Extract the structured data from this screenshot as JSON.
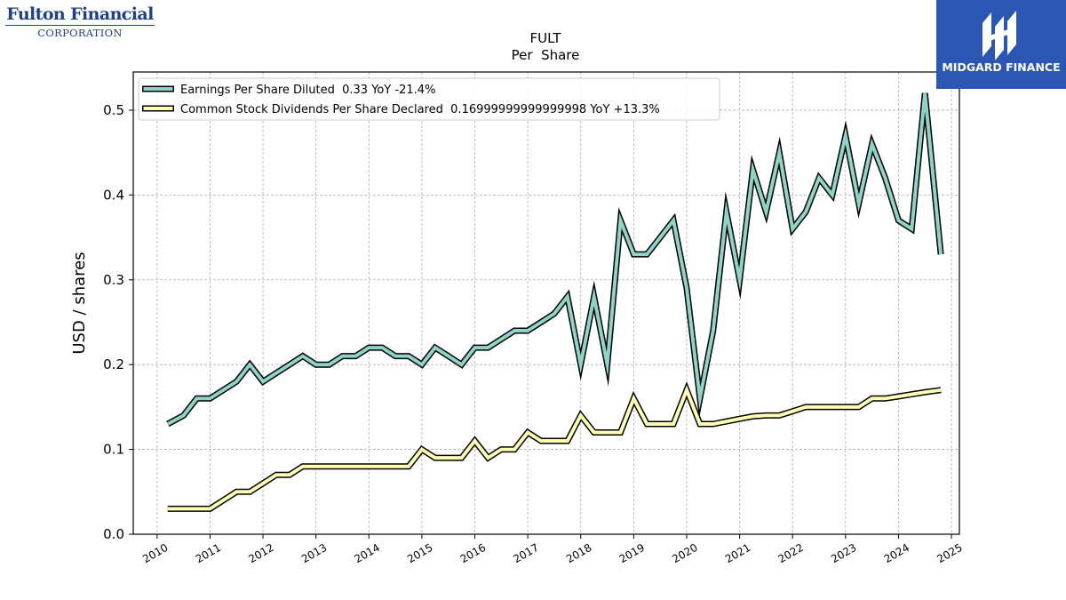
{
  "branding": {
    "left_logo": {
      "name": "Fulton Financial",
      "sub": "CORPORATION",
      "color": "#1f3f8a"
    },
    "right_logo": {
      "name": "MIDGARD FINANCE",
      "icon": "midgard-logo-icon",
      "background": "#2a57b3"
    }
  },
  "chart_data": {
    "type": "line",
    "title": "FULT",
    "subtitle": "Per  Share",
    "xlabel": "",
    "ylabel": "USD / shares",
    "xlim": [
      2009.55,
      2025.15
    ],
    "ylim": [
      0.0,
      0.545
    ],
    "x_ticks": [
      2010,
      2011,
      2012,
      2013,
      2014,
      2015,
      2016,
      2017,
      2018,
      2019,
      2020,
      2021,
      2022,
      2023,
      2024,
      2025
    ],
    "x_tick_labels": [
      "2010",
      "2011",
      "2012",
      "2013",
      "2014",
      "2015",
      "2016",
      "2017",
      "2018",
      "2019",
      "2020",
      "2021",
      "2022",
      "2023",
      "2024",
      "2025"
    ],
    "y_ticks": [
      0.0,
      0.1,
      0.2,
      0.3,
      0.4,
      0.5
    ],
    "y_tick_labels": [
      "0.0",
      "0.1",
      "0.2",
      "0.3",
      "0.4",
      "0.5"
    ],
    "grid": true,
    "legend_position": "top-left",
    "series": [
      {
        "name": "Earnings Per Share Diluted",
        "legend_label": "Earnings Per Share Diluted  0.33 YoY -21.4%",
        "color": "#8dd3c7",
        "x": [
          2010.2,
          2010.5,
          2010.75,
          2011.0,
          2011.25,
          2011.5,
          2011.75,
          2012.0,
          2012.25,
          2012.5,
          2012.75,
          2013.0,
          2013.25,
          2013.5,
          2013.75,
          2014.0,
          2014.25,
          2014.5,
          2014.75,
          2015.0,
          2015.25,
          2015.5,
          2015.75,
          2016.0,
          2016.25,
          2016.5,
          2016.75,
          2017.0,
          2017.25,
          2017.5,
          2017.75,
          2018.0,
          2018.25,
          2018.5,
          2018.75,
          2019.0,
          2019.25,
          2019.5,
          2019.75,
          2020.0,
          2020.25,
          2020.5,
          2020.75,
          2021.0,
          2021.25,
          2021.5,
          2021.75,
          2022.0,
          2022.25,
          2022.5,
          2022.75,
          2023.0,
          2023.25,
          2023.5,
          2023.75,
          2024.0,
          2024.25,
          2024.5,
          2024.8
        ],
        "values": [
          0.13,
          0.14,
          0.16,
          0.16,
          0.17,
          0.18,
          0.2,
          0.18,
          0.19,
          0.2,
          0.21,
          0.2,
          0.2,
          0.21,
          0.21,
          0.22,
          0.22,
          0.21,
          0.21,
          0.2,
          0.22,
          0.21,
          0.2,
          0.22,
          0.22,
          0.23,
          0.24,
          0.24,
          0.25,
          0.26,
          0.28,
          0.2,
          0.28,
          0.2,
          0.37,
          0.33,
          0.33,
          0.35,
          0.37,
          0.29,
          0.16,
          0.24,
          0.38,
          0.3,
          0.43,
          0.38,
          0.45,
          0.36,
          0.38,
          0.42,
          0.4,
          0.47,
          0.39,
          0.46,
          0.42,
          0.37,
          0.36,
          0.52,
          0.33
        ]
      },
      {
        "name": "Common Stock Dividends Per Share Declared",
        "legend_label": "Common Stock Dividends Per Share Declared  0.16999999999999998 YoY +13.3%",
        "color": "#ffffb3",
        "x": [
          2010.2,
          2010.5,
          2010.75,
          2011.0,
          2011.25,
          2011.5,
          2011.75,
          2012.0,
          2012.25,
          2012.5,
          2012.75,
          2013.0,
          2013.25,
          2013.5,
          2013.75,
          2014.0,
          2014.25,
          2014.5,
          2014.75,
          2015.0,
          2015.25,
          2015.5,
          2015.75,
          2016.0,
          2016.25,
          2016.5,
          2016.75,
          2017.0,
          2017.25,
          2017.5,
          2017.75,
          2018.0,
          2018.25,
          2018.5,
          2018.75,
          2019.0,
          2019.25,
          2019.5,
          2019.75,
          2020.0,
          2020.25,
          2020.5,
          2020.75,
          2021.0,
          2021.25,
          2021.5,
          2021.75,
          2022.0,
          2022.25,
          2022.5,
          2022.75,
          2023.0,
          2023.25,
          2023.5,
          2023.75,
          2024.0,
          2024.25,
          2024.5,
          2024.8
        ],
        "values": [
          0.03,
          0.03,
          0.03,
          0.03,
          0.04,
          0.05,
          0.05,
          0.06,
          0.07,
          0.07,
          0.08,
          0.08,
          0.08,
          0.08,
          0.08,
          0.08,
          0.08,
          0.08,
          0.08,
          0.1,
          0.09,
          0.09,
          0.09,
          0.11,
          0.09,
          0.1,
          0.1,
          0.12,
          0.11,
          0.11,
          0.11,
          0.14,
          0.12,
          0.12,
          0.12,
          0.16,
          0.13,
          0.13,
          0.13,
          0.17,
          0.13,
          0.13,
          0.133,
          0.136,
          0.139,
          0.14,
          0.14,
          0.145,
          0.15,
          0.15,
          0.15,
          0.15,
          0.15,
          0.16,
          0.16,
          0.1625,
          0.165,
          0.1675,
          0.17
        ]
      }
    ]
  }
}
